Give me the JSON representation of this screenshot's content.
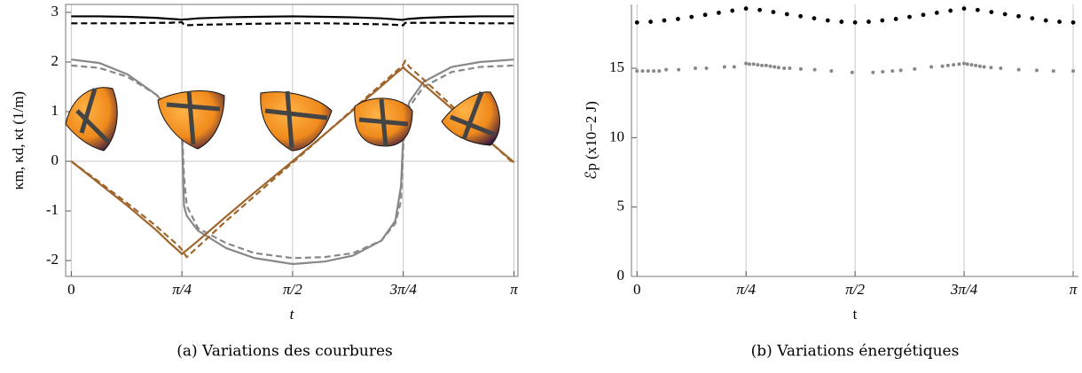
{
  "chart_data": [
    {
      "type": "line",
      "xlabel": "t",
      "ylabel": "κm, κd, κt (1/m)",
      "caption": "(a) Variations des courbures",
      "x": [
        0,
        0.2,
        0.4,
        0.6,
        0.7,
        0.76,
        0.7854,
        0.8,
        0.82,
        0.9,
        1.1,
        1.3,
        1.5708,
        1.8,
        2.0,
        2.2,
        2.3,
        2.34,
        2.3562,
        2.37,
        2.4,
        2.5,
        2.7,
        2.9,
        3.1416
      ],
      "series": [
        {
          "color": "#000000",
          "dash": false,
          "values": [
            2.92,
            2.92,
            2.91,
            2.89,
            2.87,
            2.86,
            2.85,
            2.86,
            2.86,
            2.88,
            2.9,
            2.91,
            2.92,
            2.91,
            2.9,
            2.88,
            2.86,
            2.85,
            2.85,
            2.86,
            2.87,
            2.89,
            2.91,
            2.92,
            2.92
          ]
        },
        {
          "color": "#000000",
          "dash": true,
          "values": [
            2.78,
            2.78,
            2.78,
            2.79,
            2.79,
            2.8,
            2.8,
            2.75,
            2.74,
            2.75,
            2.76,
            2.77,
            2.78,
            2.78,
            2.77,
            2.76,
            2.75,
            2.74,
            2.74,
            2.79,
            2.79,
            2.79,
            2.79,
            2.78,
            2.78
          ]
        },
        {
          "color": "#888888",
          "dash": false,
          "values": [
            2.05,
            1.98,
            1.75,
            1.35,
            1.05,
            0.9,
            0.5,
            -0.9,
            -1.1,
            -1.4,
            -1.75,
            -1.95,
            -2.07,
            -2.02,
            -1.9,
            -1.6,
            -1.2,
            -0.5,
            0.5,
            0.9,
            1.2,
            1.6,
            1.9,
            2.0,
            2.05
          ]
        },
        {
          "color": "#888888",
          "dash": true,
          "values": [
            1.93,
            1.88,
            1.7,
            1.35,
            1.1,
            0.95,
            0.7,
            -0.3,
            -0.9,
            -1.35,
            -1.65,
            -1.85,
            -1.95,
            -1.93,
            -1.85,
            -1.6,
            -1.25,
            -0.8,
            0.3,
            0.8,
            1.1,
            1.5,
            1.8,
            1.9,
            1.93
          ]
        },
        {
          "color": "#a0652b",
          "dash": false,
          "values": [
            0,
            -0.45,
            -0.9,
            -1.38,
            -1.65,
            -1.8,
            -1.87,
            -1.83,
            -1.79,
            -1.6,
            -1.11,
            -0.63,
            0,
            0.55,
            1.03,
            1.51,
            1.76,
            1.85,
            1.9,
            1.85,
            1.78,
            1.55,
            1.06,
            0.56,
            -0.02
          ]
        },
        {
          "color": "#a0652b",
          "dash": true,
          "values": [
            0,
            -0.42,
            -0.85,
            -1.3,
            -1.55,
            -1.7,
            -1.78,
            -1.85,
            -1.93,
            -1.72,
            -1.2,
            -0.7,
            -0.03,
            0.55,
            1.05,
            1.55,
            1.8,
            1.9,
            1.95,
            2.02,
            1.9,
            1.65,
            1.12,
            0.58,
            -0.05
          ]
        }
      ],
      "xlim": [
        -0.04,
        3.17
      ],
      "ylim": [
        -2.32,
        3.16
      ],
      "xticks": [
        0,
        {
          "value": 0.7854,
          "label": "π/4"
        },
        {
          "value": 1.5708,
          "label": "π/2"
        },
        {
          "value": 2.3562,
          "label": "3π/4"
        },
        {
          "value": 3.1416,
          "label": "π"
        }
      ],
      "yticks": [
        -2,
        -1,
        0,
        1,
        2,
        3
      ],
      "grid": "x",
      "zero_line": true,
      "frame": "box"
    },
    {
      "type": "scatter",
      "xlabel": "t",
      "ylabel": "ℰp (x10−2 J)",
      "caption": "(b) Variations énergétiques",
      "series": [
        {
          "color": "#000000",
          "size": 2.4,
          "x": [
            0,
            0.098,
            0.196,
            0.295,
            0.393,
            0.491,
            0.589,
            0.687,
            0.785,
            0.884,
            0.982,
            1.08,
            1.178,
            1.276,
            1.374,
            1.473,
            1.571,
            1.669,
            1.767,
            1.865,
            1.963,
            2.062,
            2.16,
            2.258,
            2.356,
            2.454,
            2.553,
            2.651,
            2.749,
            2.847,
            2.945,
            3.043,
            3.142
          ],
          "values": [
            18.3,
            18.35,
            18.45,
            18.55,
            18.7,
            18.85,
            19.0,
            19.15,
            19.3,
            19.2,
            19.05,
            18.9,
            18.75,
            18.6,
            18.45,
            18.35,
            18.3,
            18.35,
            18.45,
            18.55,
            18.7,
            18.85,
            19.0,
            19.15,
            19.3,
            19.2,
            19.05,
            18.9,
            18.75,
            18.6,
            18.45,
            18.35,
            18.3
          ]
        },
        {
          "color": "#888888",
          "size": 2,
          "x": [
            0,
            0.04,
            0.08,
            0.12,
            0.16,
            0.21,
            0.3,
            0.42,
            0.5,
            0.63,
            0.7,
            0.785,
            0.81,
            0.84,
            0.87,
            0.9,
            0.93,
            0.96,
            0.99,
            1.02,
            1.06,
            1.1,
            1.18,
            1.28,
            1.4,
            1.55,
            1.7,
            1.77,
            1.84,
            1.9,
            2.0,
            2.12,
            2.2,
            2.24,
            2.28,
            2.32,
            2.356,
            2.38,
            2.41,
            2.44,
            2.47,
            2.5,
            2.55,
            2.62,
            2.75,
            2.88,
            3.0,
            3.142
          ],
          "values": [
            14.8,
            14.8,
            14.8,
            14.8,
            14.8,
            14.9,
            14.9,
            15.0,
            15.0,
            15.1,
            15.1,
            15.35,
            15.3,
            15.3,
            15.25,
            15.2,
            15.2,
            15.15,
            15.1,
            15.05,
            15.0,
            15.0,
            14.95,
            14.9,
            14.8,
            14.7,
            14.7,
            14.75,
            14.8,
            14.85,
            14.95,
            15.1,
            15.15,
            15.2,
            15.25,
            15.3,
            15.35,
            15.3,
            15.25,
            15.2,
            15.15,
            15.1,
            15.05,
            15.0,
            14.9,
            14.85,
            14.8,
            14.8
          ]
        }
      ],
      "xlim": [
        -0.04,
        3.18
      ],
      "ylim": [
        0,
        19.6
      ],
      "xticks": [
        0,
        {
          "value": 0.7854,
          "label": "π/4"
        },
        {
          "value": 1.5708,
          "label": "π/2"
        },
        {
          "value": 2.3562,
          "label": "3π/4"
        },
        {
          "value": 3.1416,
          "label": "π"
        }
      ],
      "yticks": [
        0,
        5,
        10,
        15
      ],
      "grid": "x",
      "zero_line": false,
      "frame": "axes"
    }
  ]
}
